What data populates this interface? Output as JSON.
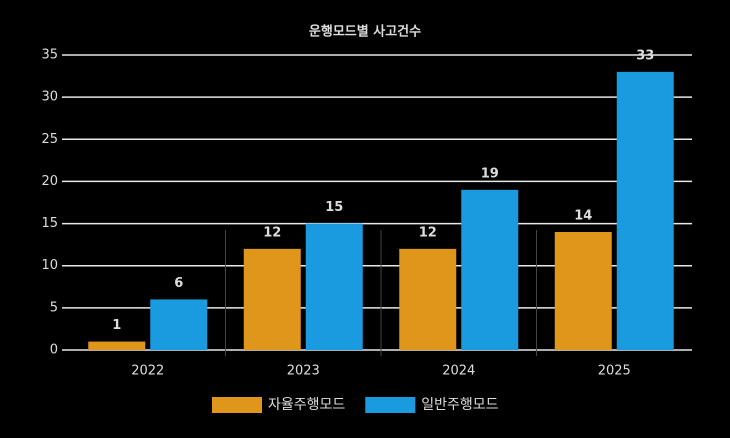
{
  "chart_data": {
    "type": "bar",
    "title": "운행모드별 사고건수",
    "categories": [
      "2022",
      "2023",
      "2024",
      "2025"
    ],
    "series": [
      {
        "name": "자율주행모드",
        "color": "#e0961a",
        "values": [
          1,
          12,
          12,
          14
        ]
      },
      {
        "name": "일반주행모드",
        "color": "#1a9be0",
        "values": [
          6,
          15,
          19,
          33
        ]
      }
    ],
    "ylim": [
      0,
      35
    ],
    "yticks": [
      0,
      5,
      10,
      15,
      20,
      25,
      30,
      35
    ],
    "grid": true,
    "legend": "bottom"
  }
}
